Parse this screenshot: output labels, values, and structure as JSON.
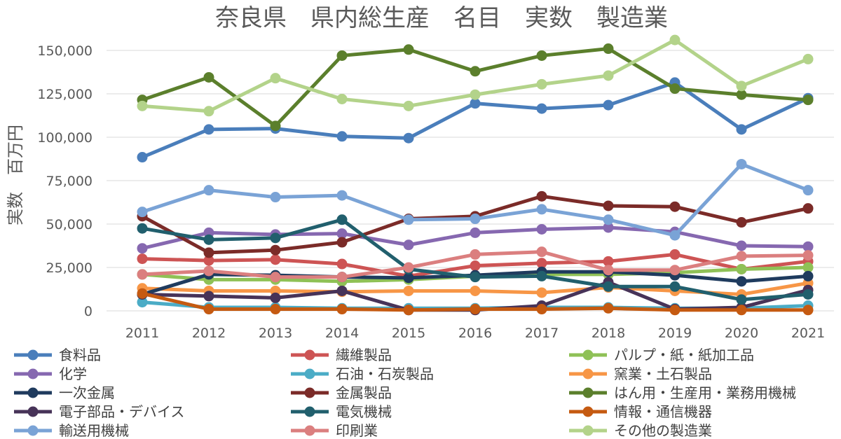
{
  "chart_data": {
    "type": "line",
    "title": "奈良県　県内総生産　名目　実数　製造業",
    "ylabel": "実数　百万円",
    "xlabel": "",
    "ylim": [
      0,
      160000
    ],
    "yticks": [
      0,
      25000,
      50000,
      75000,
      100000,
      125000,
      150000
    ],
    "ytick_labels": [
      "0",
      "25,000",
      "50,000",
      "75,000",
      "100,000",
      "125,000",
      "150,000"
    ],
    "categories": [
      "2011",
      "2012",
      "2013",
      "2014",
      "2015",
      "2016",
      "2017",
      "2018",
      "2019",
      "2020",
      "2021"
    ],
    "grid": true,
    "legend_position": "bottom",
    "series": [
      {
        "name": "食料品",
        "color": "#4a7ebb",
        "values": [
          88500,
          104500,
          105000,
          100500,
          99500,
          119500,
          116500,
          118500,
          131500,
          104500,
          122500
        ]
      },
      {
        "name": "繊維製品",
        "color": "#cd5454",
        "values": [
          30000,
          29000,
          29500,
          27000,
          20000,
          26000,
          27500,
          28500,
          32500,
          24000,
          28500
        ]
      },
      {
        "name": "パルプ・紙・紙加工品",
        "color": "#8fc156",
        "values": [
          21000,
          18000,
          18000,
          17000,
          18000,
          20000,
          21000,
          21000,
          22000,
          24000,
          25000
        ]
      },
      {
        "name": "化学",
        "color": "#8668b0",
        "values": [
          36000,
          45000,
          44000,
          44500,
          38000,
          45000,
          47000,
          48000,
          45500,
          37500,
          37000
        ]
      },
      {
        "name": "石油・石炭製品",
        "color": "#4bacc6",
        "values": [
          5000,
          2000,
          2000,
          1500,
          1500,
          1500,
          2000,
          2000,
          1500,
          1500,
          3000
        ]
      },
      {
        "name": "窯業・土石製品",
        "color": "#f79646",
        "values": [
          13000,
          11500,
          11500,
          11000,
          11500,
          11500,
          10500,
          13500,
          11500,
          9500,
          16000
        ]
      },
      {
        "name": "一次金属",
        "color": "#1f3b5e",
        "values": [
          9500,
          21000,
          20500,
          19500,
          19000,
          20500,
          22500,
          22500,
          20500,
          17000,
          20000
        ]
      },
      {
        "name": "金属製品",
        "color": "#7b2b28",
        "values": [
          54500,
          33500,
          35000,
          39500,
          53000,
          54500,
          66000,
          60500,
          60000,
          51000,
          59000
        ]
      },
      {
        "name": "はん用・生産用・業務用機械",
        "color": "#5b7f2c",
        "values": [
          121500,
          134500,
          106500,
          147000,
          150500,
          138000,
          147000,
          151000,
          128000,
          124500,
          121500
        ]
      },
      {
        "name": "電子部品・デバイス",
        "color": "#473358",
        "values": [
          9500,
          8500,
          7500,
          11500,
          500,
          500,
          3000,
          16500,
          1000,
          2000,
          12000
        ]
      },
      {
        "name": "電気機械",
        "color": "#215f6d",
        "values": [
          47500,
          41000,
          42000,
          52500,
          24000,
          19500,
          20000,
          14000,
          14000,
          6500,
          9500
        ]
      },
      {
        "name": "情報・通信機器",
        "color": "#c55a11",
        "values": [
          10000,
          1000,
          1000,
          1000,
          500,
          1000,
          1000,
          1500,
          500,
          500,
          500
        ]
      },
      {
        "name": "輸送用機械",
        "color": "#7aa3d6",
        "values": [
          57000,
          69500,
          65500,
          66500,
          52500,
          53000,
          58500,
          52500,
          43500,
          84500,
          69500
        ]
      },
      {
        "name": "印刷業",
        "color": "#db7f7f",
        "values": [
          21000,
          23000,
          19500,
          19500,
          25000,
          32500,
          34000,
          23500,
          23500,
          31500,
          32000
        ]
      },
      {
        "name": "その他の製造業",
        "color": "#b3d38a",
        "values": [
          118000,
          115000,
          134000,
          122000,
          118000,
          124500,
          130500,
          135500,
          156000,
          129500,
          145000
        ]
      }
    ]
  }
}
